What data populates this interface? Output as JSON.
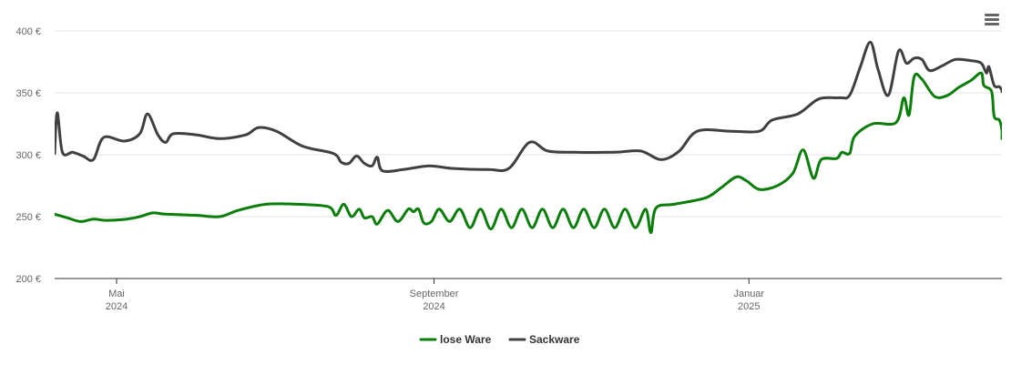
{
  "chart_data": {
    "type": "line",
    "x_type": "date",
    "xlim": [
      "2024-04-07",
      "2025-04-09"
    ],
    "ylim": [
      200,
      400
    ],
    "y_ticks": [
      {
        "value": 200,
        "label": "200 €"
      },
      {
        "value": 250,
        "label": "250 €"
      },
      {
        "value": 300,
        "label": "300 €"
      },
      {
        "value": 350,
        "label": "350 €"
      },
      {
        "value": 400,
        "label": "400 €"
      }
    ],
    "x_ticks": [
      {
        "date": "2024-05-01",
        "month": "Mai",
        "year": "2024"
      },
      {
        "date": "2024-09-01",
        "month": "September",
        "year": "2024"
      },
      {
        "date": "2025-01-01",
        "month": "Januar",
        "year": "2025"
      }
    ],
    "grid": "horizontal",
    "legend_position": "bottom-center",
    "series": [
      {
        "name": "lose Ware",
        "color": "#0a7d0a",
        "points": [
          [
            "2024-04-07",
            252
          ],
          [
            "2024-04-12",
            249
          ],
          [
            "2024-04-17",
            246
          ],
          [
            "2024-04-22",
            248
          ],
          [
            "2024-04-27",
            247
          ],
          [
            "2024-05-05",
            248
          ],
          [
            "2024-05-10",
            250
          ],
          [
            "2024-05-15",
            253
          ],
          [
            "2024-05-20",
            252
          ],
          [
            "2024-06-01",
            251
          ],
          [
            "2024-06-10",
            250
          ],
          [
            "2024-06-17",
            255
          ],
          [
            "2024-06-28",
            260
          ],
          [
            "2024-07-10",
            260
          ],
          [
            "2024-07-22",
            258
          ],
          [
            "2024-07-25",
            251
          ],
          [
            "2024-07-28",
            260
          ],
          [
            "2024-07-31",
            250
          ],
          [
            "2024-08-03",
            256
          ],
          [
            "2024-08-05",
            249
          ],
          [
            "2024-08-08",
            250
          ],
          [
            "2024-08-10",
            244
          ],
          [
            "2024-08-14",
            255
          ],
          [
            "2024-08-18",
            246
          ],
          [
            "2024-08-22",
            256
          ],
          [
            "2024-08-24",
            254
          ],
          [
            "2024-08-26",
            256
          ],
          [
            "2024-08-28",
            245
          ],
          [
            "2024-08-31",
            246
          ],
          [
            "2024-09-03",
            256
          ],
          [
            "2024-09-07",
            246
          ],
          [
            "2024-09-11",
            256
          ],
          [
            "2024-09-15",
            241
          ],
          [
            "2024-09-19",
            256
          ],
          [
            "2024-09-23",
            240
          ],
          [
            "2024-09-27",
            256
          ],
          [
            "2024-10-01",
            241
          ],
          [
            "2024-10-05",
            256
          ],
          [
            "2024-10-09",
            241
          ],
          [
            "2024-10-13",
            256
          ],
          [
            "2024-10-17",
            241
          ],
          [
            "2024-10-21",
            256
          ],
          [
            "2024-10-25",
            241
          ],
          [
            "2024-10-29",
            256
          ],
          [
            "2024-11-02",
            241
          ],
          [
            "2024-11-06",
            256
          ],
          [
            "2024-11-10",
            241
          ],
          [
            "2024-11-14",
            256
          ],
          [
            "2024-11-18",
            241
          ],
          [
            "2024-11-22",
            256
          ],
          [
            "2024-11-24",
            237
          ],
          [
            "2024-11-26",
            257
          ],
          [
            "2024-12-03",
            260
          ],
          [
            "2024-12-15",
            265
          ],
          [
            "2024-12-21",
            273
          ],
          [
            "2024-12-27",
            282
          ],
          [
            "2024-12-31",
            279
          ],
          [
            "2025-01-05",
            272
          ],
          [
            "2025-01-12",
            275
          ],
          [
            "2025-01-18",
            285
          ],
          [
            "2025-01-22",
            304
          ],
          [
            "2025-01-26",
            281
          ],
          [
            "2025-01-29",
            296
          ],
          [
            "2025-02-04",
            297
          ],
          [
            "2025-02-06",
            302
          ],
          [
            "2025-02-09",
            301
          ],
          [
            "2025-02-11",
            315
          ],
          [
            "2025-02-18",
            325
          ],
          [
            "2025-02-27",
            326
          ],
          [
            "2025-03-02",
            346
          ],
          [
            "2025-03-04",
            332
          ],
          [
            "2025-03-06",
            363
          ],
          [
            "2025-03-09",
            361
          ],
          [
            "2025-03-14",
            347
          ],
          [
            "2025-03-19",
            348
          ],
          [
            "2025-03-23",
            354
          ],
          [
            "2025-03-28",
            360
          ],
          [
            "2025-04-01",
            366
          ],
          [
            "2025-04-02",
            356
          ],
          [
            "2025-04-05",
            351
          ],
          [
            "2025-04-06",
            331
          ],
          [
            "2025-04-08",
            328
          ],
          [
            "2025-04-09",
            320
          ],
          [
            "2025-04-09",
            313
          ]
        ]
      },
      {
        "name": "Sackware",
        "color": "#404040",
        "points": [
          [
            "2024-04-07",
            301
          ],
          [
            "2024-04-08",
            334
          ],
          [
            "2024-04-10",
            302
          ],
          [
            "2024-04-14",
            302
          ],
          [
            "2024-04-18",
            299
          ],
          [
            "2024-04-22",
            296
          ],
          [
            "2024-04-26",
            314
          ],
          [
            "2024-05-04",
            311
          ],
          [
            "2024-05-10",
            317
          ],
          [
            "2024-05-13",
            333
          ],
          [
            "2024-05-17",
            316
          ],
          [
            "2024-05-20",
            310
          ],
          [
            "2024-05-23",
            317
          ],
          [
            "2024-06-01",
            316
          ],
          [
            "2024-06-10",
            313
          ],
          [
            "2024-06-20",
            316
          ],
          [
            "2024-06-25",
            322
          ],
          [
            "2024-07-02",
            319
          ],
          [
            "2024-07-12",
            307
          ],
          [
            "2024-07-24",
            301
          ],
          [
            "2024-07-27",
            294
          ],
          [
            "2024-07-30",
            293
          ],
          [
            "2024-08-02",
            299
          ],
          [
            "2024-08-05",
            293
          ],
          [
            "2024-08-08",
            291
          ],
          [
            "2024-08-10",
            298
          ],
          [
            "2024-08-12",
            287
          ],
          [
            "2024-08-20",
            288
          ],
          [
            "2024-08-30",
            291
          ],
          [
            "2024-09-08",
            289
          ],
          [
            "2024-09-22",
            288
          ],
          [
            "2024-09-30",
            289
          ],
          [
            "2024-10-08",
            310
          ],
          [
            "2024-10-15",
            303
          ],
          [
            "2024-10-25",
            302
          ],
          [
            "2024-11-10",
            302
          ],
          [
            "2024-11-20",
            303
          ],
          [
            "2024-11-28",
            296
          ],
          [
            "2024-12-05",
            303
          ],
          [
            "2024-12-12",
            319
          ],
          [
            "2024-12-25",
            319
          ],
          [
            "2025-01-05",
            319
          ],
          [
            "2025-01-10",
            328
          ],
          [
            "2025-01-20",
            333
          ],
          [
            "2025-01-28",
            345
          ],
          [
            "2025-02-05",
            346
          ],
          [
            "2025-02-09",
            348
          ],
          [
            "2025-02-13",
            370
          ],
          [
            "2025-02-17",
            391
          ],
          [
            "2025-02-20",
            369
          ],
          [
            "2025-02-24",
            348
          ],
          [
            "2025-02-28",
            384
          ],
          [
            "2025-03-03",
            374
          ],
          [
            "2025-03-06",
            378
          ],
          [
            "2025-03-09",
            377
          ],
          [
            "2025-03-12",
            368
          ],
          [
            "2025-03-17",
            372
          ],
          [
            "2025-03-22",
            377
          ],
          [
            "2025-03-28",
            376
          ],
          [
            "2025-04-01",
            374
          ],
          [
            "2025-04-03",
            366
          ],
          [
            "2025-04-04",
            371
          ],
          [
            "2025-04-06",
            356
          ],
          [
            "2025-04-08",
            355
          ],
          [
            "2025-04-09",
            352
          ],
          [
            "2025-04-09",
            351
          ]
        ]
      }
    ]
  },
  "toolbar": {
    "menu_icon": "hamburger-menu-icon"
  }
}
